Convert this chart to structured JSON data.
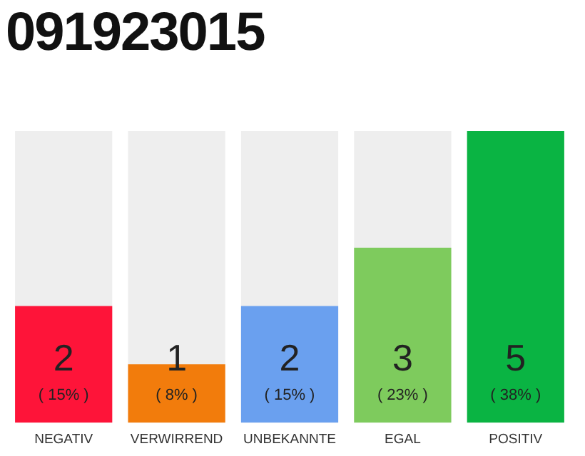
{
  "chart_data": {
    "type": "bar",
    "title": "091923015",
    "categories": [
      "NEGATIV",
      "VERWIRREND",
      "UNBEKANNTE",
      "EGAL",
      "POSITIV"
    ],
    "values": [
      2,
      1,
      2,
      3,
      5
    ],
    "colors": [
      "#fe1439",
      "#f27c0c",
      "#6aa0ef",
      "#7ecb5d",
      "#0ab443"
    ],
    "ylim": [
      0,
      5
    ],
    "tick_labels": "x",
    "grid": false,
    "legend": false,
    "data_labels": true,
    "annotations": [
      "( 15% )",
      "( 8% )",
      "( 15% )",
      "( 23% )",
      "( 38% )"
    ]
  }
}
